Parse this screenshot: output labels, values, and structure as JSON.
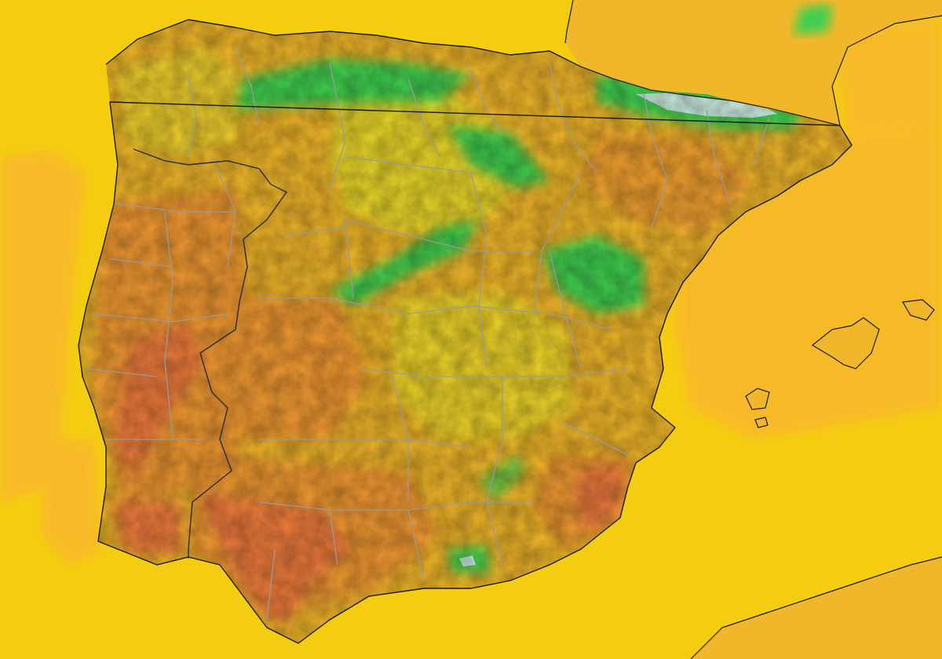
{
  "map": {
    "colors": {
      "sea_base": "#f5cd10",
      "sea_warm": "#f8b92c",
      "land_base": "#f0b72a",
      "land_light": "#ecd82c",
      "land_warm": "#f29a32",
      "land_hot": "#ef7c3c",
      "highland_green": "#3fd050",
      "peak_snow": "#e8f7ff",
      "coastline": "#1b1b1b",
      "admin_border": "#9a9a9a"
    },
    "legend_visible": false,
    "title_visible": false
  }
}
